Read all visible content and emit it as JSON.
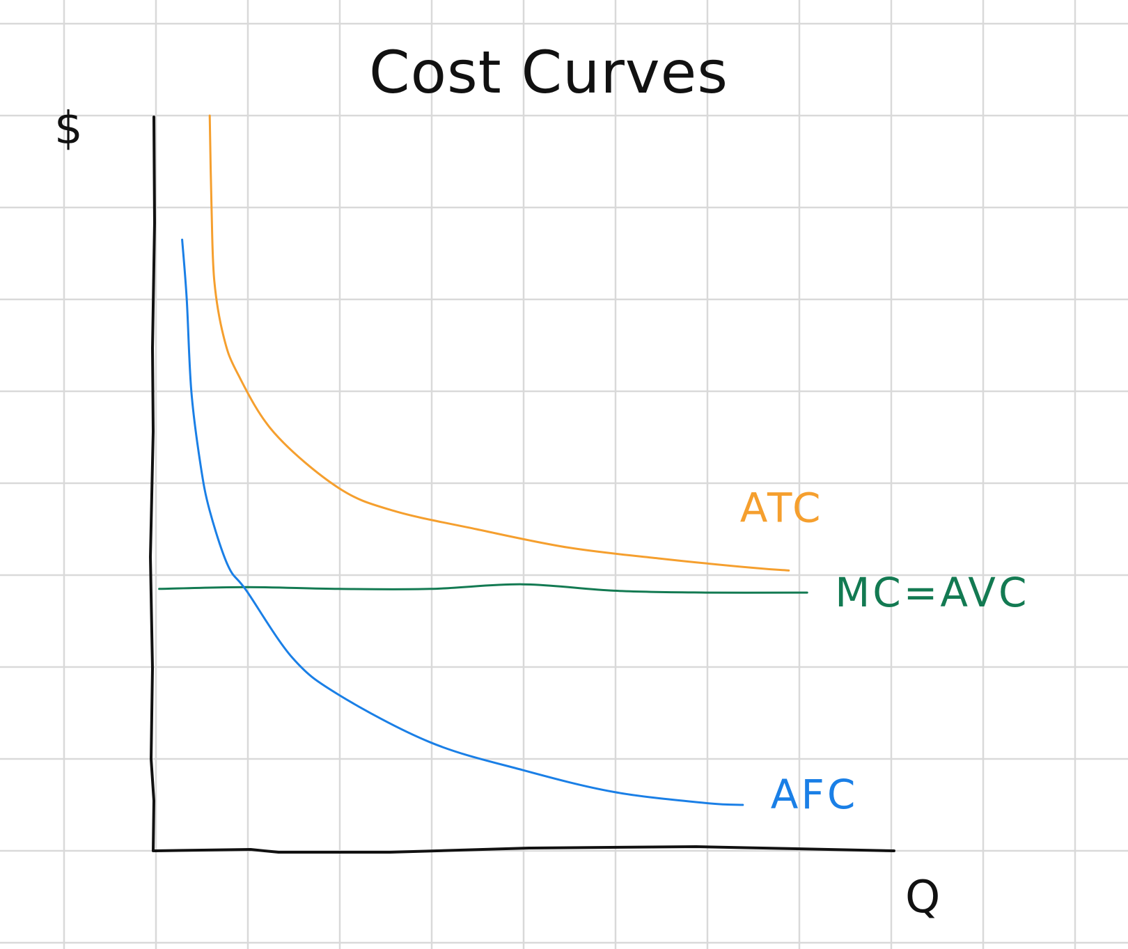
{
  "chart_data": {
    "type": "line",
    "title": "Cost Curves",
    "ylabel": "$",
    "xlabel": "Q",
    "grid": true,
    "legend": "none",
    "xlim": [
      0,
      8
    ],
    "ylim": [
      0,
      8
    ],
    "series": [
      {
        "name": "ATC",
        "color": "#f59f2e",
        "points": [
          [
            0.6,
            8.0
          ],
          [
            0.62,
            7.0
          ],
          [
            0.65,
            6.2
          ],
          [
            0.75,
            5.6
          ],
          [
            0.9,
            5.2
          ],
          [
            1.3,
            4.55
          ],
          [
            2.0,
            3.95
          ],
          [
            2.6,
            3.7
          ],
          [
            3.5,
            3.5
          ],
          [
            4.5,
            3.3
          ],
          [
            5.5,
            3.18
          ],
          [
            6.5,
            3.08
          ],
          [
            6.9,
            3.05
          ]
        ]
      },
      {
        "name": "MC=AVC",
        "color": "#137a52",
        "points": [
          [
            0.05,
            2.85
          ],
          [
            1.0,
            2.87
          ],
          [
            2.0,
            2.85
          ],
          [
            3.0,
            2.85
          ],
          [
            4.0,
            2.9
          ],
          [
            5.0,
            2.83
          ],
          [
            6.0,
            2.81
          ],
          [
            7.1,
            2.81
          ]
        ]
      },
      {
        "name": "AFC",
        "color": "#1a7fe6",
        "points": [
          [
            0.3,
            6.65
          ],
          [
            0.35,
            6.0
          ],
          [
            0.4,
            5.0
          ],
          [
            0.5,
            4.2
          ],
          [
            0.6,
            3.7
          ],
          [
            0.8,
            3.1
          ],
          [
            1.0,
            2.83
          ],
          [
            1.5,
            2.1
          ],
          [
            2.0,
            1.7
          ],
          [
            3.0,
            1.18
          ],
          [
            4.0,
            0.88
          ],
          [
            5.0,
            0.64
          ],
          [
            6.0,
            0.52
          ],
          [
            6.4,
            0.5
          ]
        ]
      }
    ]
  }
}
